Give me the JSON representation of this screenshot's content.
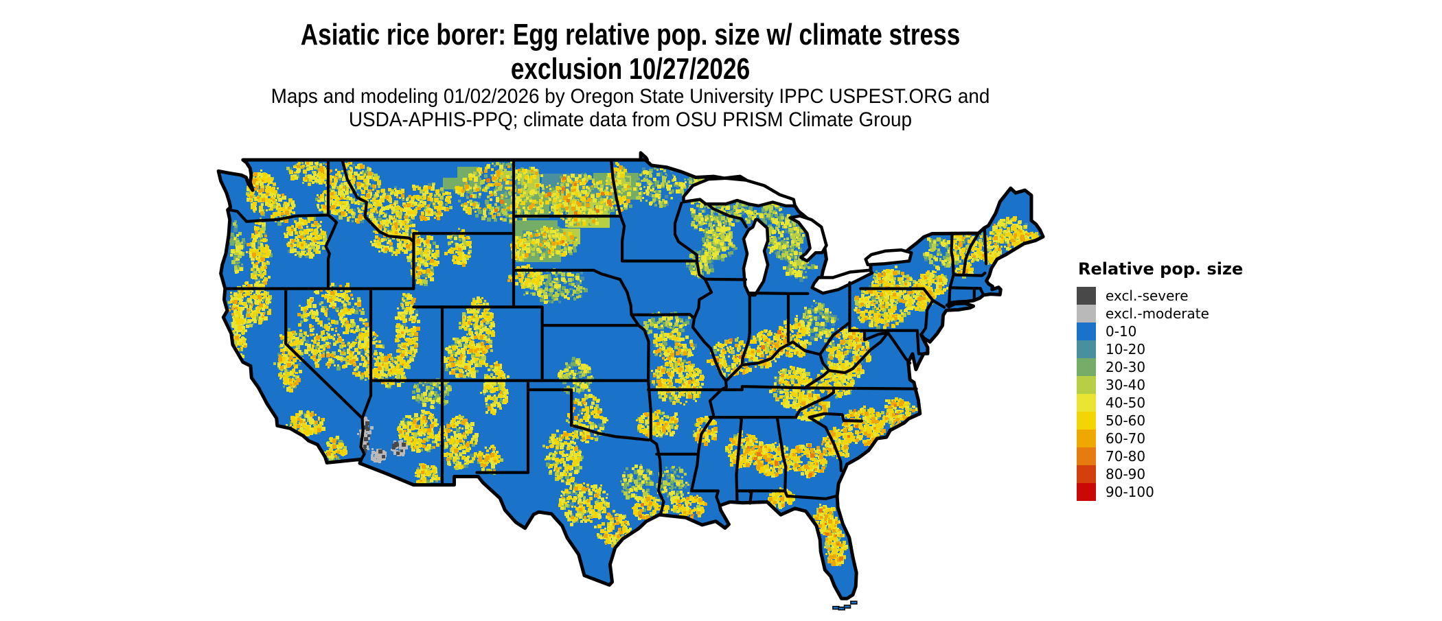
{
  "header": {
    "title_line1": "Asiatic rice borer: Egg relative pop. size w/ climate stress",
    "title_line2": "exclusion 10/27/2026",
    "subtitle_line1": "Maps and modeling 01/02/2026 by Oregon State University IPPC USPEST.ORG and",
    "subtitle_line2": "USDA-APHIS-PPQ; climate data from OSU PRISM Climate Group"
  },
  "legend": {
    "title": "Relative pop. size",
    "entries": [
      {
        "label": "excl.-severe",
        "color": "#484848"
      },
      {
        "label": "excl.-moderate",
        "color": "#b9b9b9"
      },
      {
        "label": "0-10",
        "color": "#1a73c8"
      },
      {
        "label": "10-20",
        "color": "#4a8fa0"
      },
      {
        "label": "20-30",
        "color": "#74ac68"
      },
      {
        "label": "30-40",
        "color": "#b8ce44"
      },
      {
        "label": "40-50",
        "color": "#e9e532"
      },
      {
        "label": "50-60",
        "color": "#f3d506"
      },
      {
        "label": "60-70",
        "color": "#efa702"
      },
      {
        "label": "70-80",
        "color": "#e67c10"
      },
      {
        "label": "80-90",
        "color": "#d4400d"
      },
      {
        "label": "90-100",
        "color": "#ca0806"
      }
    ]
  },
  "map": {
    "depicts": "continental United States raster of relative population size",
    "water_color": "#ffffff",
    "border_color": "#000000",
    "dominant_class": "0-10"
  }
}
